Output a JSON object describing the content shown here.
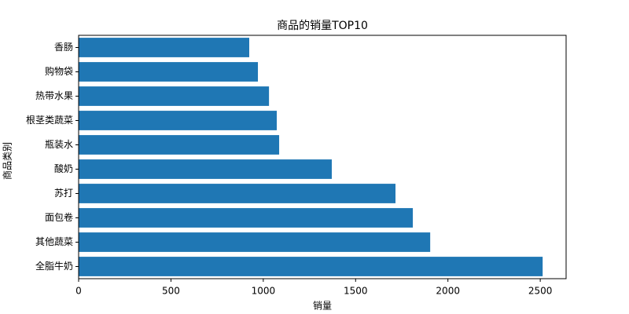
{
  "chart_data": {
    "type": "barh",
    "title": "商品的销量TOP10",
    "xlabel": "销量",
    "ylabel": "商品类别",
    "categories": [
      "全脂牛奶",
      "其他蔬菜",
      "面包卷",
      "苏打",
      "酸奶",
      "瓶装水",
      "根茎类蔬菜",
      "热带水果",
      "购物袋",
      "香肠"
    ],
    "values": [
      2513,
      1904,
      1810,
      1716,
      1371,
      1086,
      1073,
      1031,
      971,
      924
    ],
    "color": "#1f77b4",
    "xlim": [
      0,
      2640
    ],
    "xticks": [
      0,
      500,
      1000,
      1500,
      2000,
      2500
    ]
  }
}
